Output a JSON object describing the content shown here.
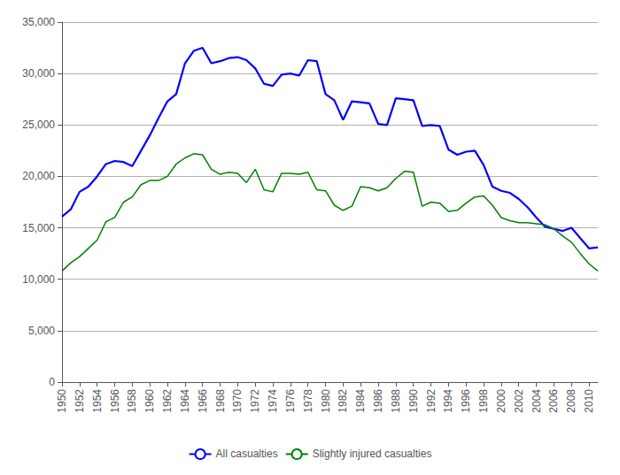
{
  "chart_data": {
    "type": "line",
    "x": [
      1950,
      1951,
      1952,
      1953,
      1954,
      1955,
      1956,
      1957,
      1958,
      1959,
      1960,
      1961,
      1962,
      1963,
      1964,
      1965,
      1966,
      1967,
      1968,
      1969,
      1970,
      1971,
      1972,
      1973,
      1974,
      1975,
      1976,
      1977,
      1978,
      1979,
      1980,
      1981,
      1982,
      1983,
      1984,
      1985,
      1986,
      1987,
      1988,
      1989,
      1990,
      1991,
      1992,
      1993,
      1994,
      1995,
      1996,
      1997,
      1998,
      1999,
      2000,
      2001,
      2002,
      2003,
      2004,
      2005,
      2006,
      2007,
      2008,
      2009,
      2010,
      2011
    ],
    "series": [
      {
        "name": "All casualties",
        "color": "#0000FF",
        "values": [
          16100,
          16800,
          18500,
          19000,
          20000,
          21200,
          21500,
          21400,
          21000,
          22500,
          24000,
          25700,
          27300,
          28000,
          31000,
          32200,
          32500,
          31000,
          31200,
          31500,
          31600,
          31300,
          30500,
          29000,
          28800,
          29900,
          30000,
          29800,
          31300,
          31200,
          28000,
          27400,
          25500,
          27300,
          27200,
          27100,
          25100,
          25000,
          27600,
          27500,
          27400,
          24900,
          25000,
          24900,
          22600,
          22100,
          22400,
          22500,
          21100,
          19000,
          18600,
          18400,
          17800,
          17000,
          16000,
          15100,
          14900,
          14700,
          15000,
          14000,
          13000,
          13100
        ]
      },
      {
        "name": "Slightly injured casualties",
        "color": "#008000",
        "values": [
          10800,
          11600,
          12200,
          13000,
          13800,
          15600,
          16000,
          17500,
          18000,
          19200,
          19600,
          19600,
          20000,
          21200,
          21800,
          22200,
          22100,
          20700,
          20200,
          20400,
          20300,
          19400,
          20700,
          18700,
          18500,
          20300,
          20300,
          20200,
          20400,
          18700,
          18600,
          17200,
          16700,
          17100,
          19000,
          18900,
          18600,
          18900,
          19800,
          20500,
          20400,
          17100,
          17500,
          17400,
          16600,
          16700,
          17400,
          18000,
          18100,
          17200,
          16000,
          15700,
          15500,
          15500,
          15400,
          15300,
          14900,
          14200,
          13600,
          12500,
          11500,
          10800
        ]
      }
    ],
    "xlim": [
      1950,
      2011
    ],
    "xticks": [
      1950,
      1952,
      1954,
      1956,
      1958,
      1960,
      1962,
      1964,
      1966,
      1968,
      1970,
      1972,
      1974,
      1976,
      1978,
      1980,
      1982,
      1984,
      1986,
      1988,
      1990,
      1992,
      1994,
      1996,
      1998,
      2000,
      2002,
      2004,
      2006,
      2008,
      2010
    ],
    "ylim": [
      0,
      35000
    ],
    "yticks": [
      0,
      {
        "value": 5000,
        "label": "5,000"
      },
      {
        "value": 10000,
        "label": "10,000"
      },
      {
        "value": 15000,
        "label": "15,000"
      },
      {
        "value": 20000,
        "label": "20,000"
      },
      {
        "value": 25000,
        "label": "25,000"
      },
      {
        "value": 30000,
        "label": "30,000"
      },
      {
        "value": 35000,
        "label": "35,000"
      }
    ],
    "grid": true,
    "legend": "bottom"
  }
}
